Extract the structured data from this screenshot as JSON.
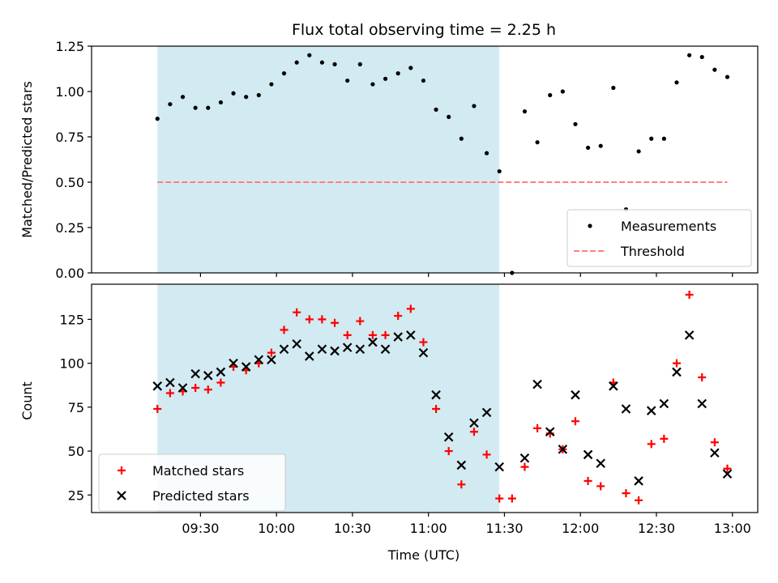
{
  "chart_data": [
    {
      "type": "scatter",
      "title": "Flux total observing time = 2.25 h",
      "xlabel": "",
      "ylabel": "Matched/Predicted stars",
      "ylim": [
        0,
        1.25
      ],
      "yticks": [
        "0.00",
        "0.25",
        "0.50",
        "0.75",
        "1.00",
        "1.25"
      ],
      "shaded_region": {
        "x_start": "09:13",
        "x_end": "11:28",
        "color": "#add8e6"
      },
      "threshold": {
        "name": "Threshold",
        "value": 0.5,
        "x_start": "09:13",
        "x_end": "12:58",
        "color": "#ff7f7f"
      },
      "legend": {
        "position": "lower right",
        "entries": [
          "Measurements",
          "Threshold"
        ]
      },
      "series": [
        {
          "name": "Measurements",
          "color": "#000000",
          "x": [
            "09:13",
            "09:18",
            "09:23",
            "09:28",
            "09:33",
            "09:38",
            "09:43",
            "09:48",
            "09:53",
            "09:58",
            "10:03",
            "10:08",
            "10:13",
            "10:18",
            "10:23",
            "10:28",
            "10:33",
            "10:38",
            "10:43",
            "10:48",
            "10:53",
            "10:58",
            "11:03",
            "11:08",
            "11:13",
            "11:18",
            "11:23",
            "11:28",
            "11:33",
            "11:38",
            "11:43",
            "11:48",
            "11:53",
            "11:58",
            "12:03",
            "12:08",
            "12:13",
            "12:18",
            "12:23",
            "12:28",
            "12:33",
            "12:38",
            "12:43",
            "12:48",
            "12:53",
            "12:58"
          ],
          "y": [
            0.85,
            0.93,
            0.97,
            0.91,
            0.91,
            0.94,
            0.99,
            0.97,
            0.98,
            1.04,
            1.1,
            1.16,
            1.2,
            1.16,
            1.15,
            1.06,
            1.15,
            1.04,
            1.07,
            1.1,
            1.13,
            1.06,
            0.9,
            0.86,
            0.74,
            0.92,
            0.66,
            0.56,
            0.0,
            0.89,
            0.72,
            0.98,
            1.0,
            0.82,
            0.69,
            0.7,
            1.02,
            0.35,
            0.67,
            0.74,
            0.74,
            1.05,
            1.2,
            1.19,
            1.12,
            1.08
          ]
        }
      ]
    },
    {
      "type": "scatter",
      "title": "",
      "xlabel": "Time (UTC)",
      "ylabel": "Count",
      "ylim": [
        15,
        145
      ],
      "yticks": [
        "25",
        "50",
        "75",
        "100",
        "125"
      ],
      "xticks": [
        "09:30",
        "10:00",
        "10:30",
        "11:00",
        "11:30",
        "12:00",
        "12:30",
        "13:00"
      ],
      "shaded_region": {
        "x_start": "09:13",
        "x_end": "11:28",
        "color": "#add8e6"
      },
      "legend": {
        "position": "lower left",
        "entries": [
          "Matched stars",
          "Predicted stars"
        ]
      },
      "series": [
        {
          "name": "Matched stars",
          "marker": "plus",
          "color": "#ff0000",
          "x": [
            "09:13",
            "09:18",
            "09:23",
            "09:28",
            "09:33",
            "09:38",
            "09:43",
            "09:48",
            "09:53",
            "09:58",
            "10:03",
            "10:08",
            "10:13",
            "10:18",
            "10:23",
            "10:28",
            "10:33",
            "10:38",
            "10:43",
            "10:48",
            "10:53",
            "10:58",
            "11:03",
            "11:08",
            "11:13",
            "11:18",
            "11:23",
            "11:28",
            "11:33",
            "11:38",
            "11:43",
            "11:48",
            "11:53",
            "11:58",
            "12:03",
            "12:08",
            "12:13",
            "12:18",
            "12:23",
            "12:28",
            "12:33",
            "12:38",
            "12:43",
            "12:48",
            "12:53",
            "12:58"
          ],
          "y": [
            74,
            83,
            84,
            86,
            85,
            89,
            98,
            96,
            100,
            106,
            119,
            129,
            125,
            125,
            123,
            116,
            124,
            116,
            116,
            127,
            131,
            112,
            74,
            50,
            31,
            61,
            48,
            23,
            23,
            41,
            63,
            60,
            51,
            67,
            33,
            30,
            89,
            26,
            22,
            54,
            57,
            100,
            139,
            92,
            55,
            40
          ]
        },
        {
          "name": "Predicted stars",
          "marker": "x",
          "color": "#000000",
          "x": [
            "09:13",
            "09:18",
            "09:23",
            "09:28",
            "09:33",
            "09:38",
            "09:43",
            "09:48",
            "09:53",
            "09:58",
            "10:03",
            "10:08",
            "10:13",
            "10:18",
            "10:23",
            "10:28",
            "10:33",
            "10:38",
            "10:43",
            "10:48",
            "10:53",
            "10:58",
            "11:03",
            "11:08",
            "11:13",
            "11:18",
            "11:23",
            "11:28",
            "11:38",
            "11:43",
            "11:48",
            "11:53",
            "11:58",
            "12:03",
            "12:08",
            "12:13",
            "12:18",
            "12:23",
            "12:28",
            "12:33",
            "12:38",
            "12:43",
            "12:48",
            "12:53",
            "12:58"
          ],
          "y": [
            87,
            89,
            86,
            94,
            93,
            95,
            100,
            98,
            102,
            102,
            108,
            111,
            104,
            108,
            107,
            109,
            108,
            112,
            108,
            115,
            116,
            106,
            82,
            58,
            42,
            66,
            72,
            41,
            46,
            88,
            61,
            51,
            82,
            48,
            43,
            87,
            74,
            33,
            73,
            77,
            95,
            116,
            77,
            49,
            37
          ]
        }
      ]
    }
  ]
}
